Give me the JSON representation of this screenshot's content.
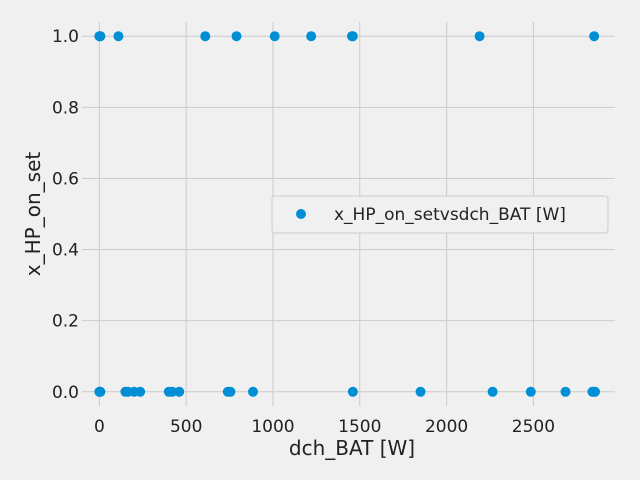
{
  "chart_data": {
    "type": "scatter",
    "xlabel": "dch_BAT [W]",
    "ylabel": "x_HP_on_set",
    "xlim": [
      -100,
      2970
    ],
    "ylim": [
      -0.04,
      1.04
    ],
    "xticks": [
      0,
      500,
      1000,
      1500,
      2000,
      2500
    ],
    "yticks": [
      0.0,
      0.2,
      0.4,
      0.6,
      0.8,
      1.0
    ],
    "grid": true,
    "legend_position": "center-right",
    "series": [
      {
        "name": "x_HP_on_setvsdch_BAT [W]",
        "color": "#008fd5",
        "points": [
          {
            "x": 0,
            "y": 1
          },
          {
            "x": 3,
            "y": 1
          },
          {
            "x": 6,
            "y": 1
          },
          {
            "x": 110,
            "y": 1
          },
          {
            "x": 610,
            "y": 1
          },
          {
            "x": 790,
            "y": 1
          },
          {
            "x": 1010,
            "y": 1
          },
          {
            "x": 1220,
            "y": 1
          },
          {
            "x": 1455,
            "y": 1
          },
          {
            "x": 1460,
            "y": 1
          },
          {
            "x": 2190,
            "y": 1
          },
          {
            "x": 2850,
            "y": 1
          },
          {
            "x": 0,
            "y": 0
          },
          {
            "x": 3,
            "y": 0
          },
          {
            "x": 6,
            "y": 0
          },
          {
            "x": 150,
            "y": 0
          },
          {
            "x": 165,
            "y": 0
          },
          {
            "x": 200,
            "y": 0
          },
          {
            "x": 235,
            "y": 0
          },
          {
            "x": 400,
            "y": 0
          },
          {
            "x": 420,
            "y": 0
          },
          {
            "x": 460,
            "y": 0
          },
          {
            "x": 740,
            "y": 0
          },
          {
            "x": 755,
            "y": 0
          },
          {
            "x": 885,
            "y": 0
          },
          {
            "x": 1460,
            "y": 0
          },
          {
            "x": 1850,
            "y": 0
          },
          {
            "x": 2265,
            "y": 0
          },
          {
            "x": 2485,
            "y": 0
          },
          {
            "x": 2685,
            "y": 0
          },
          {
            "x": 2840,
            "y": 0
          },
          {
            "x": 2850,
            "y": 0
          },
          {
            "x": 2855,
            "y": 0
          }
        ]
      }
    ]
  }
}
